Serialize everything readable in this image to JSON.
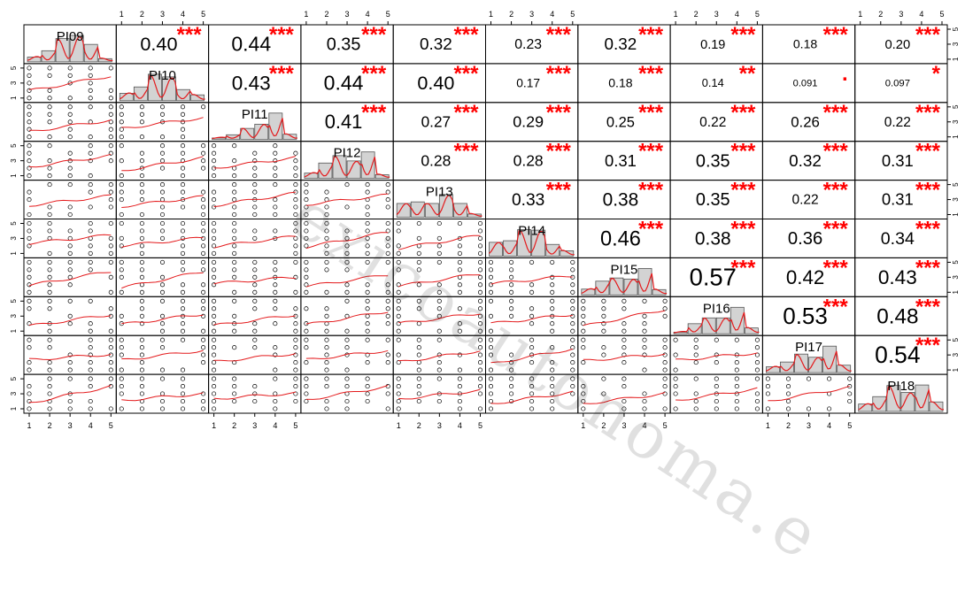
{
  "chart_data": {
    "type": "scatter-matrix",
    "variables": [
      "PI09",
      "PI10",
      "PI11",
      "PI12",
      "PI13",
      "PI14",
      "PI15",
      "PI16",
      "PI17",
      "PI18"
    ],
    "tick_labels": [
      "1",
      "2",
      "3",
      "4",
      "5"
    ],
    "axis_range": [
      1,
      5
    ],
    "upper_panel": "correlation coefficients with significance stars",
    "lower_panel": "jittered scatter with smoothing line",
    "diagonal_panel": "histogram with density curve",
    "grid": false,
    "correlations": [
      [
        null,
        "0.40",
        "0.44",
        "0.35",
        "0.32",
        "0.23",
        "0.32",
        "0.19",
        "0.18",
        "0.20"
      ],
      [
        null,
        null,
        "0.43",
        "0.44",
        "0.40",
        "0.17",
        "0.18",
        "0.14",
        "0.091",
        "0.097"
      ],
      [
        null,
        null,
        null,
        "0.41",
        "0.27",
        "0.29",
        "0.25",
        "0.22",
        "0.26",
        "0.22"
      ],
      [
        null,
        null,
        null,
        null,
        "0.28",
        "0.28",
        "0.31",
        "0.35",
        "0.32",
        "0.31"
      ],
      [
        null,
        null,
        null,
        null,
        null,
        "0.33",
        "0.38",
        "0.35",
        "0.22",
        "0.31"
      ],
      [
        null,
        null,
        null,
        null,
        null,
        null,
        "0.46",
        "0.38",
        "0.36",
        "0.34"
      ],
      [
        null,
        null,
        null,
        null,
        null,
        null,
        null,
        "0.57",
        "0.42",
        "0.43"
      ],
      [
        null,
        null,
        null,
        null,
        null,
        null,
        null,
        null,
        "0.53",
        "0.48"
      ],
      [
        null,
        null,
        null,
        null,
        null,
        null,
        null,
        null,
        null,
        "0.54"
      ],
      [
        null,
        null,
        null,
        null,
        null,
        null,
        null,
        null,
        null,
        null
      ]
    ],
    "significance": [
      [
        null,
        "***",
        "***",
        "***",
        "***",
        "***",
        "***",
        "***",
        "***",
        "***"
      ],
      [
        null,
        null,
        "***",
        "***",
        "***",
        "***",
        "***",
        "**",
        ".",
        "*"
      ],
      [
        null,
        null,
        null,
        "***",
        "***",
        "***",
        "***",
        "***",
        "***",
        "***"
      ],
      [
        null,
        null,
        null,
        null,
        "***",
        "***",
        "***",
        "***",
        "***",
        "***"
      ],
      [
        null,
        null,
        null,
        null,
        null,
        "***",
        "***",
        "***",
        "***",
        "***"
      ],
      [
        null,
        null,
        null,
        null,
        null,
        null,
        "***",
        "***",
        "***",
        "***"
      ],
      [
        null,
        null,
        null,
        null,
        null,
        null,
        null,
        "***",
        "***",
        "***"
      ],
      [
        null,
        null,
        null,
        null,
        null,
        null,
        null,
        null,
        "***",
        "***"
      ],
      [
        null,
        null,
        null,
        null,
        null,
        null,
        null,
        null,
        null,
        "***"
      ],
      [
        null,
        null,
        null,
        null,
        null,
        null,
        null,
        null,
        null,
        null
      ]
    ],
    "histograms": [
      [
        0.18,
        0.42,
        0.88,
        1.0,
        0.66,
        0.12
      ],
      [
        0.28,
        0.52,
        1.0,
        0.9,
        0.42,
        0.22
      ],
      [
        0.06,
        0.18,
        0.42,
        0.58,
        1.0,
        0.2
      ],
      [
        0.2,
        0.58,
        0.86,
        0.66,
        1.0,
        0.14
      ],
      [
        0.52,
        0.58,
        0.52,
        0.86,
        0.52,
        0.12
      ],
      [
        0.52,
        0.58,
        1.0,
        0.98,
        0.44,
        0.2
      ],
      [
        0.22,
        0.52,
        0.64,
        0.6,
        1.0,
        0.2
      ],
      [
        0.06,
        0.38,
        0.6,
        0.6,
        1.0,
        0.22
      ],
      [
        0.22,
        0.4,
        0.7,
        0.58,
        1.0,
        0.28
      ],
      [
        0.28,
        0.56,
        0.98,
        0.72,
        1.0,
        0.36
      ]
    ]
  },
  "watermark": "exicoautonoma.e",
  "colors": {
    "axis": "#000000",
    "points": "#000000",
    "smooth_line": "#e41a1c",
    "stars": "#ff0000",
    "bars_fill": "#d3d3d3"
  }
}
